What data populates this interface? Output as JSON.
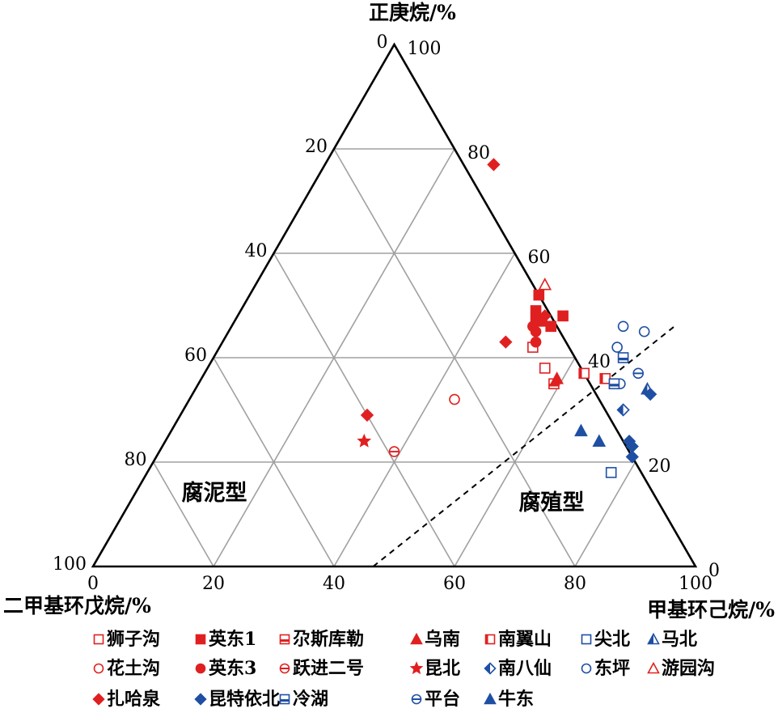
{
  "chart_data": {
    "type": "scatter",
    "subtype": "ternary",
    "axes": {
      "top": {
        "label": "正庚烷/%",
        "ticks": [
          "0",
          "20",
          "40",
          "60",
          "80",
          "100"
        ]
      },
      "left": {
        "label": "二甲基环戊烷/%",
        "ticks": [
          "100",
          "80",
          "60",
          "40",
          "20",
          "0"
        ]
      },
      "right": {
        "label": "甲基环己烷/%",
        "ticks": [
          "0",
          "20",
          "40",
          "60",
          "80",
          "100"
        ]
      },
      "right_side_ticks": [
        "100",
        "80",
        "60",
        "40",
        "20",
        "0"
      ]
    },
    "regions": [
      "腐泥型",
      "腐殖型"
    ],
    "boundary_line": {
      "style": "dashed",
      "from": {
        "right": 46.5,
        "top": 0
      },
      "to": {
        "right": 73.5,
        "top": 46
      }
    },
    "colors": {
      "red": "#e02020",
      "blue": "#1f4fa3",
      "grid": "#a0a0a0"
    },
    "series": [
      {
        "name": "狮子沟",
        "color": "red",
        "marker": "square-open",
        "points": [
          [
            52,
            42
          ],
          [
            56,
            38
          ]
        ]
      },
      {
        "name": "英东1",
        "color": "red",
        "marker": "square",
        "points": [
          [
            49,
            49
          ],
          [
            51,
            47
          ],
          [
            53,
            46
          ],
          [
            48,
            52
          ],
          [
            54,
            48
          ],
          [
            50,
            47
          ]
        ]
      },
      {
        "name": "尕斯库勒",
        "color": "red",
        "marker": "square-half-bottom",
        "points": [
          [
            59,
            35
          ]
        ]
      },
      {
        "name": "乌南",
        "color": "red",
        "marker": "triangle",
        "points": [
          [
            59,
            36
          ]
        ]
      },
      {
        "name": "南翼山",
        "color": "red",
        "marker": "square-half-left",
        "points": [
          [
            63,
            37
          ],
          [
            67,
            36
          ]
        ]
      },
      {
        "name": "尖北",
        "color": "blue",
        "marker": "square-open",
        "points": [
          [
            77,
            18
          ]
        ]
      },
      {
        "name": "马北",
        "color": "blue",
        "marker": "triangle-half",
        "points": [
          [
            75,
            34
          ]
        ]
      },
      {
        "name": "花土沟",
        "color": "red",
        "marker": "circle-open",
        "points": [
          [
            44,
            32
          ]
        ]
      },
      {
        "name": "英东3",
        "color": "red",
        "marker": "circle",
        "points": [
          [
            50,
            46
          ],
          [
            51,
            45
          ],
          [
            52,
            43
          ]
        ]
      },
      {
        "name": "跃进二号",
        "color": "red",
        "marker": "circle-half-bottom",
        "points": [
          [
            39,
            22
          ]
        ]
      },
      {
        "name": "昆北",
        "color": "red",
        "marker": "star",
        "points": [
          [
            33,
            24
          ]
        ]
      },
      {
        "name": "南八仙",
        "color": "blue",
        "marker": "diamond-half",
        "points": [
          [
            73,
            30
          ]
        ]
      },
      {
        "name": "东坪",
        "color": "blue",
        "marker": "circle-open",
        "points": [
          [
            70,
            35
          ],
          [
            66,
            42
          ],
          [
            69,
            45
          ],
          [
            65,
            46
          ]
        ]
      },
      {
        "name": "游园沟",
        "color": "red",
        "marker": "triangle-open",
        "points": [
          [
            48,
            54
          ]
        ]
      },
      {
        "name": "扎哈泉",
        "color": "red",
        "marker": "diamond",
        "points": [
          [
            28,
            77
          ],
          [
            47,
            43
          ],
          [
            51,
            48
          ],
          [
            31,
            29
          ]
        ]
      },
      {
        "name": "昆特依北",
        "color": "blue",
        "marker": "diamond",
        "points": [
          [
            76,
            33
          ],
          [
            77,
            24
          ],
          [
            78,
            23
          ],
          [
            79,
            21
          ]
        ]
      },
      {
        "name": "冷湖",
        "color": "blue",
        "marker": "square-half-bottom",
        "points": [
          [
            69,
            35
          ],
          [
            68,
            40
          ]
        ]
      },
      {
        "name": "平台",
        "color": "blue",
        "marker": "circle-half-bottom",
        "points": [
          [
            72,
            37
          ]
        ]
      },
      {
        "name": "牛东",
        "color": "blue",
        "marker": "triangle",
        "points": [
          [
            72,
            24
          ],
          [
            68,
            26
          ]
        ]
      }
    ]
  }
}
